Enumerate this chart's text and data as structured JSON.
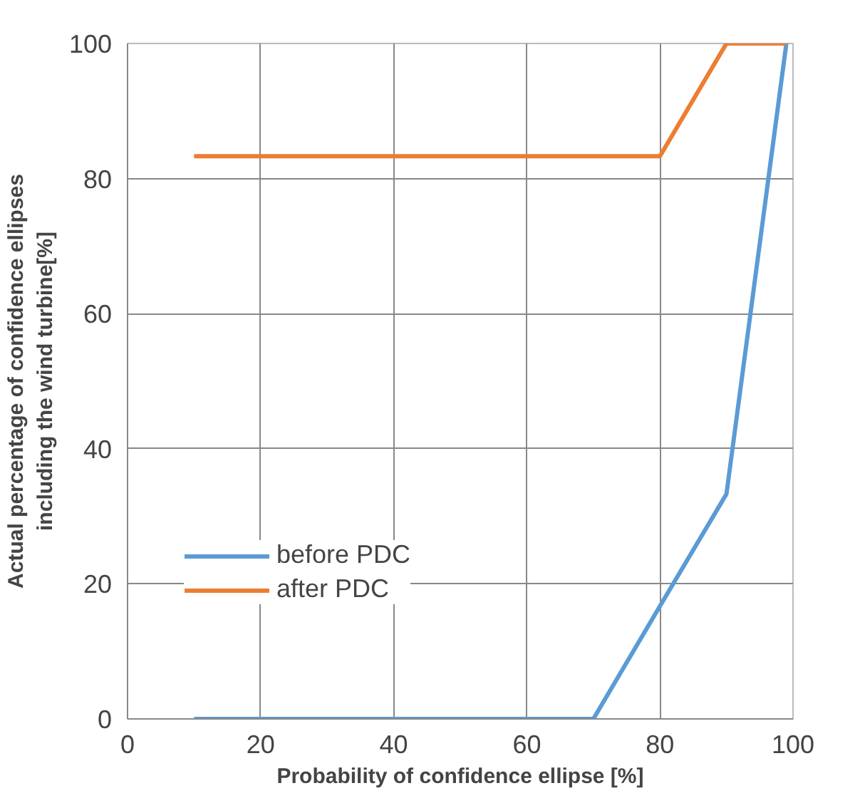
{
  "chart_data": {
    "type": "line",
    "xlabel": "Probability of confidence ellipse [%]",
    "ylabel": "Actual percentage of confidence ellipses\nincluding the wind turbine[%]",
    "xlim": [
      0,
      100
    ],
    "ylim": [
      0,
      100
    ],
    "xticks": [
      0,
      20,
      40,
      60,
      80,
      100
    ],
    "yticks": [
      0,
      20,
      40,
      60,
      80,
      100
    ],
    "grid": true,
    "legend": "bottom left",
    "marker": "none",
    "line_style": "solid",
    "series": [
      {
        "name": "before PDC",
        "color": "#5b9bd5",
        "x": [
          10,
          20,
          30,
          40,
          50,
          60,
          70,
          80,
          90,
          99
        ],
        "values": [
          0,
          0,
          0,
          0,
          0,
          0,
          0,
          16.7,
          33.3,
          100
        ]
      },
      {
        "name": "after PDC",
        "color": "#ed7d31",
        "x": [
          10,
          20,
          30,
          40,
          50,
          60,
          70,
          80,
          90,
          99
        ],
        "values": [
          83.3,
          83.3,
          83.3,
          83.3,
          83.3,
          83.3,
          83.3,
          83.3,
          100,
          100
        ]
      }
    ]
  }
}
